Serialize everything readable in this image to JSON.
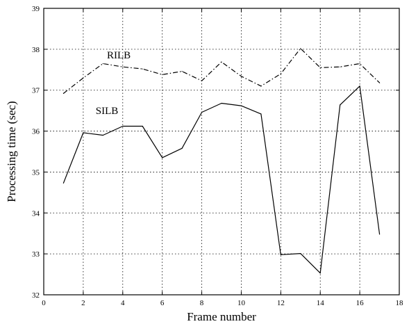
{
  "chart_data": {
    "type": "line",
    "title": "",
    "xlabel": "Frame number",
    "ylabel": "Processing time (sec)",
    "xlim": [
      0,
      18
    ],
    "ylim": [
      32,
      39
    ],
    "xticks": [
      0,
      2,
      4,
      6,
      8,
      10,
      12,
      14,
      16,
      18
    ],
    "yticks": [
      32,
      33,
      34,
      35,
      36,
      37,
      38,
      39
    ],
    "grid": true,
    "legend": "none",
    "series": [
      {
        "name": "RILB",
        "style": "dash-dot",
        "color": "#000000",
        "x": [
          1,
          2,
          3,
          4,
          5,
          6,
          7,
          8,
          9,
          10,
          11,
          12,
          13,
          14,
          15,
          16,
          17
        ],
        "values": [
          36.92,
          37.3,
          37.65,
          37.57,
          37.52,
          37.38,
          37.46,
          37.23,
          37.69,
          37.34,
          37.1,
          37.4,
          38.02,
          37.55,
          37.57,
          37.65,
          37.18
        ]
      },
      {
        "name": "SILB",
        "style": "solid",
        "color": "#000000",
        "x": [
          1,
          2,
          3,
          4,
          5,
          6,
          7,
          8,
          9,
          10,
          11,
          12,
          13,
          14,
          15,
          16,
          17
        ],
        "values": [
          34.73,
          35.96,
          35.9,
          36.12,
          36.12,
          35.35,
          35.58,
          36.46,
          36.68,
          36.62,
          36.42,
          32.98,
          33.01,
          32.53,
          36.64,
          37.1,
          33.48
        ]
      }
    ],
    "annotations": [
      {
        "text": "RILB",
        "x": 3.8,
        "y": 37.78
      },
      {
        "text": "SILB",
        "x": 3.2,
        "y": 36.42
      }
    ]
  }
}
